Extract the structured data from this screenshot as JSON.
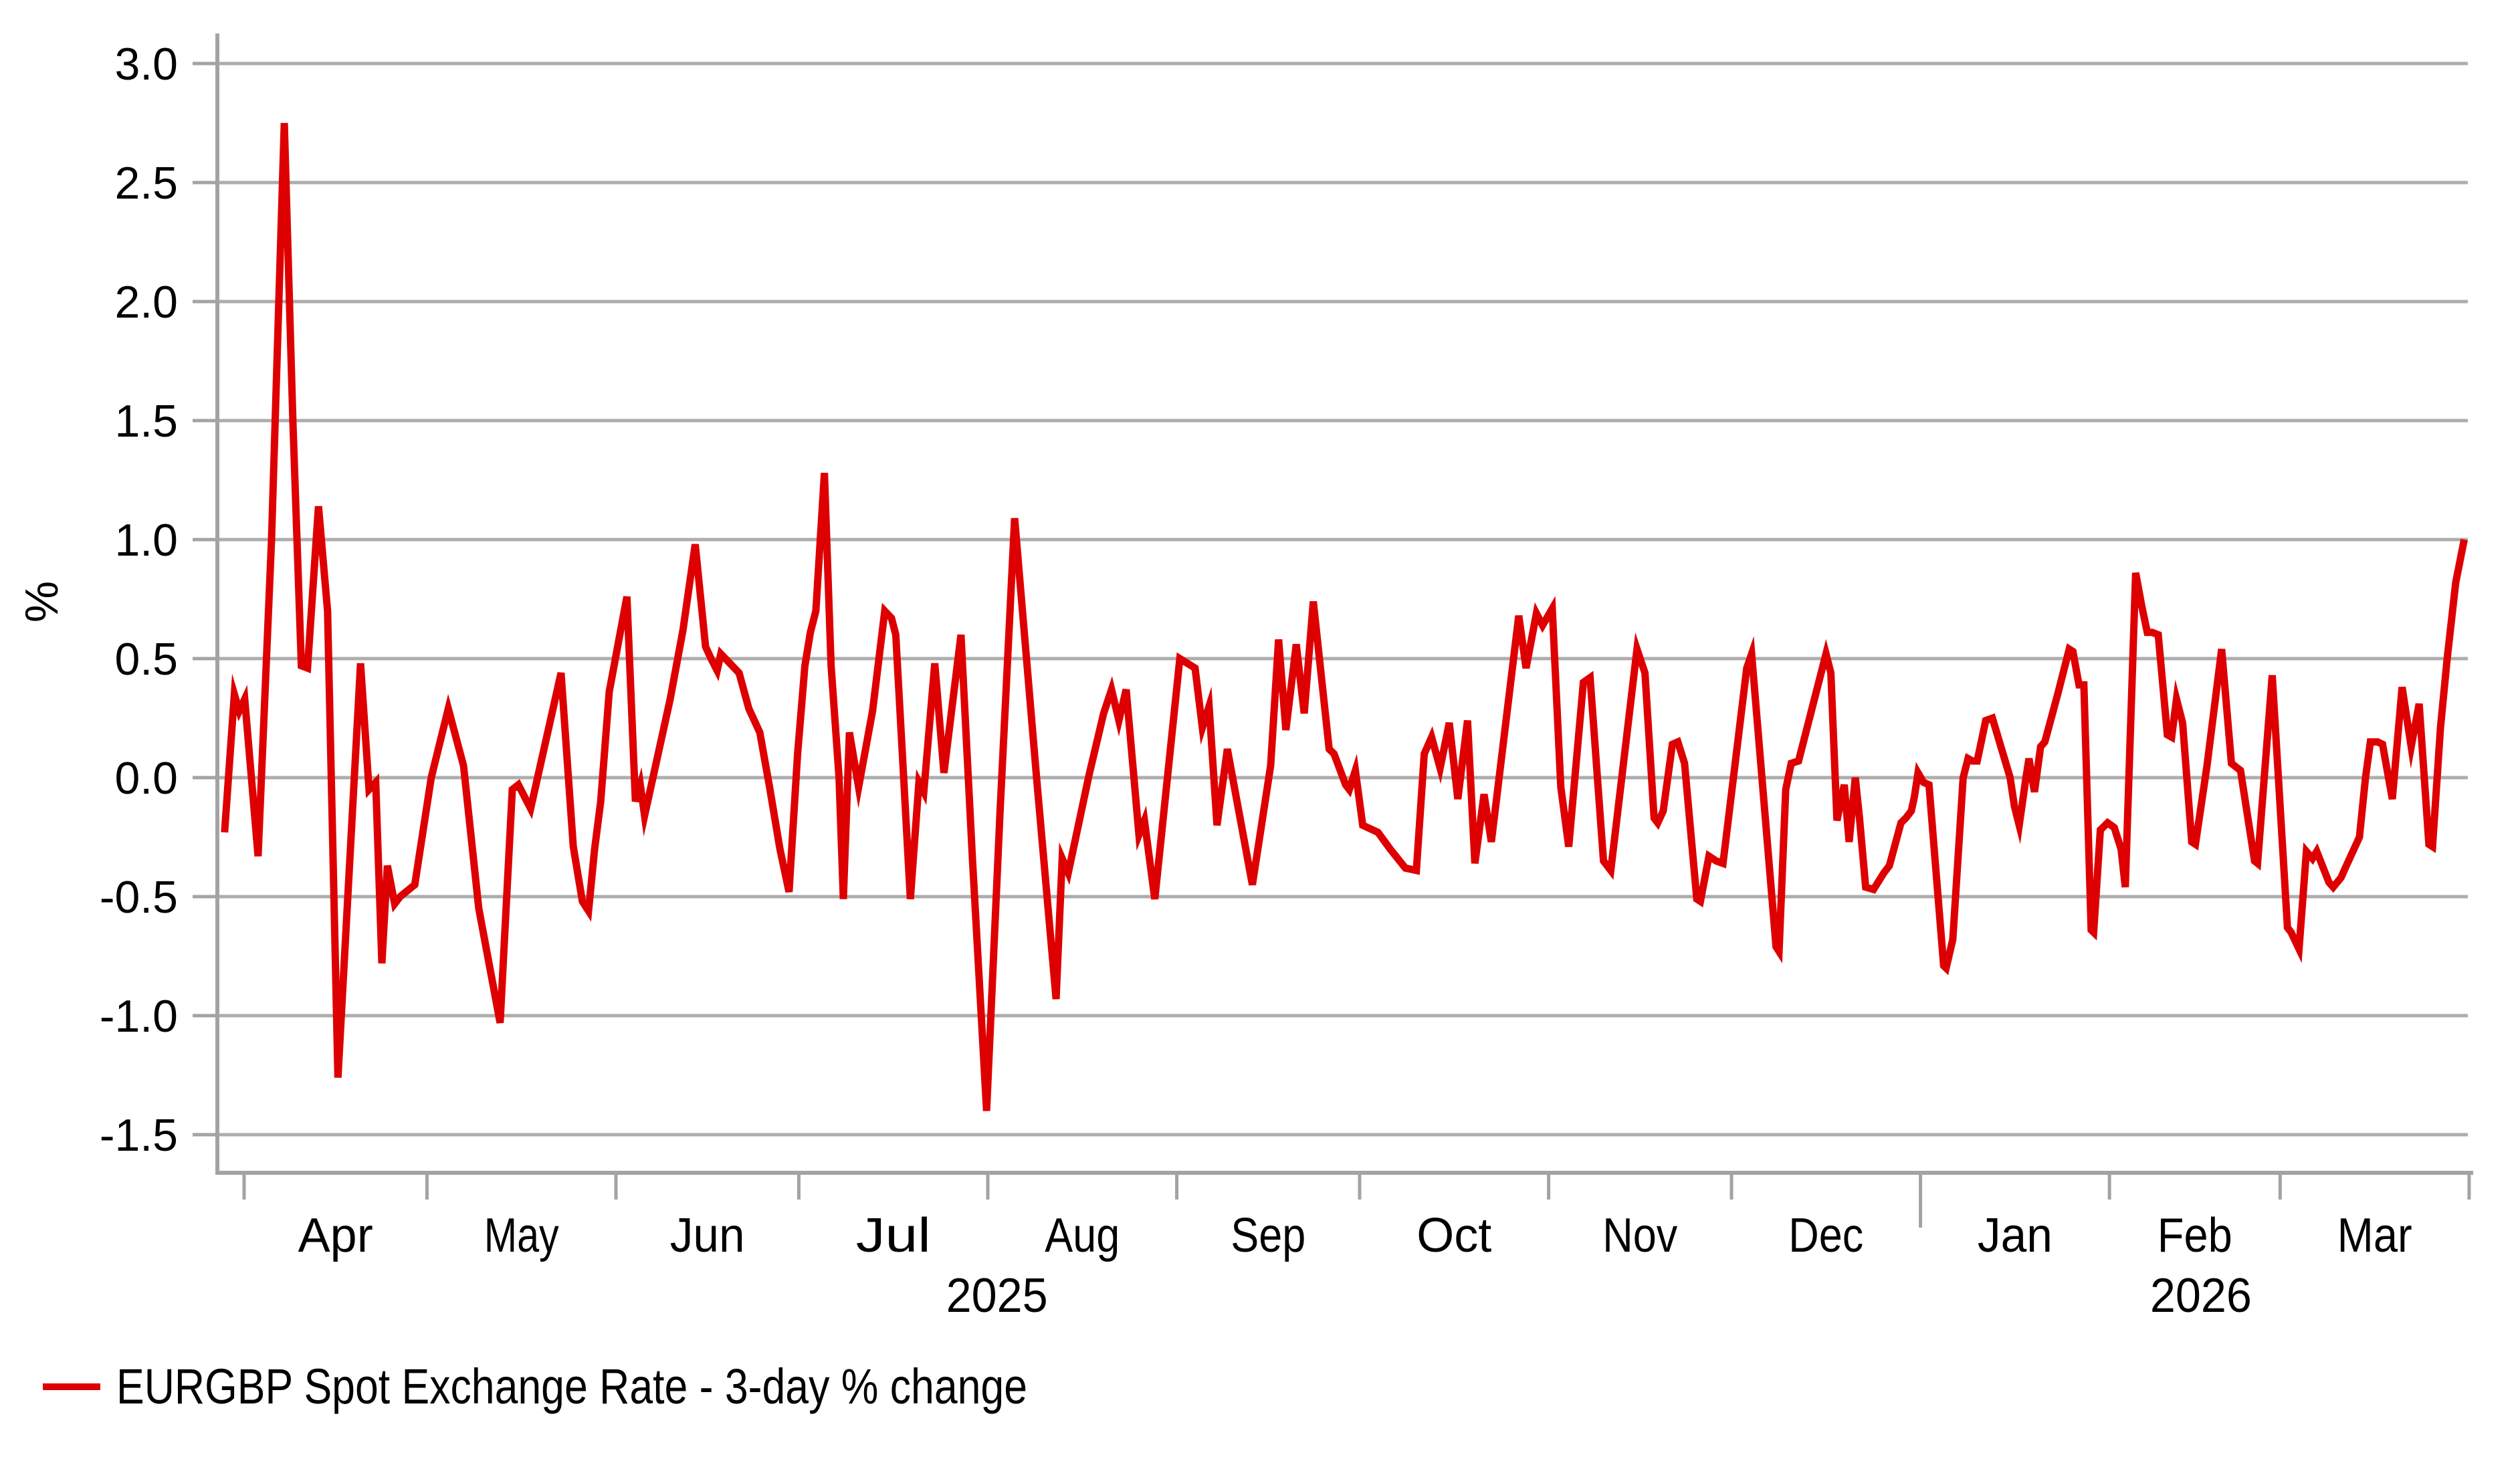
{
  "chart_data": {
    "type": "line",
    "title": "",
    "ylabel": "%",
    "grid": "horizontal",
    "legend_position": "bottom-left",
    "legend": {
      "entries": [
        {
          "label": "EURGBP Spot Exchange Rate - 3-day % change",
          "color": "#DE0000"
        }
      ]
    },
    "colors": {
      "series": "#DE0000",
      "gridline": "#ADADAD",
      "axis": "#A3A3A3",
      "text": "#000000",
      "background": "#FFFFFF"
    },
    "y_tick_labels": [
      "3.0",
      "2.5",
      "2.0",
      "1.5",
      "1.0",
      "0.5",
      "0.0",
      "-0.5",
      "-1.0",
      "-1.5"
    ],
    "y_tick_values": [
      3.0,
      2.5,
      2.0,
      1.5,
      1.0,
      0.5,
      0.0,
      -0.5,
      -1.0,
      -1.5
    ],
    "ylim": [
      -1.66,
      3.13
    ],
    "x_axis": {
      "month_ticks": [
        {
          "label": "Apr",
          "start_day": 4
        },
        {
          "label": "May",
          "start_day": 34
        },
        {
          "label": "Jun",
          "start_day": 65
        },
        {
          "label": "Jul",
          "start_day": 95
        },
        {
          "label": "Aug",
          "start_day": 126
        },
        {
          "label": "Sep",
          "start_day": 157
        },
        {
          "label": "Oct",
          "start_day": 187
        },
        {
          "label": "Nov",
          "start_day": 218
        },
        {
          "label": "Dec",
          "start_day": 248
        },
        {
          "label": "Jan",
          "start_day": 279,
          "year_start": true
        },
        {
          "label": "Feb",
          "start_day": 310
        },
        {
          "label": "Mar",
          "start_day": 338
        }
      ],
      "axis_end_day": 369,
      "year_labels": [
        {
          "label": "2025",
          "day": 127.5
        },
        {
          "label": "2026",
          "day": 325
        }
      ]
    },
    "series": [
      {
        "name": "EURGBP Spot Exchange Rate - 3-day % change",
        "color": "#DE0000",
        "points": [
          [
            0.8,
            -0.23
          ],
          [
            2.4,
            0.35
          ],
          [
            3.2,
            0.28
          ],
          [
            4.1,
            0.33
          ],
          [
            6.3,
            -0.33
          ],
          [
            8.5,
            1.0
          ],
          [
            10.6,
            2.75
          ],
          [
            12,
            1.5
          ],
          [
            13.4,
            0.47
          ],
          [
            14.4,
            0.46
          ],
          [
            16.2,
            1.14
          ],
          [
            17.7,
            0.7
          ],
          [
            19.4,
            -1.26
          ],
          [
            23.1,
            0.48
          ],
          [
            24.5,
            -0.05
          ],
          [
            25.6,
            -0.02
          ],
          [
            26.6,
            -0.78
          ],
          [
            27.5,
            -0.37
          ],
          [
            28.7,
            -0.53
          ],
          [
            29.6,
            -0.5
          ],
          [
            32,
            -0.45
          ],
          [
            34.7,
            0
          ],
          [
            37.5,
            0.29
          ],
          [
            40,
            0.05
          ],
          [
            42.5,
            -0.55
          ],
          [
            46,
            -1.03
          ],
          [
            48,
            -0.05
          ],
          [
            49,
            -0.03
          ],
          [
            51,
            -0.13
          ],
          [
            56,
            0.44
          ],
          [
            58,
            -0.29
          ],
          [
            59.5,
            -0.52
          ],
          [
            60.5,
            -0.56
          ],
          [
            61.5,
            -0.3
          ],
          [
            62.5,
            -0.1
          ],
          [
            63.9,
            0.36
          ],
          [
            66.8,
            0.76
          ],
          [
            68.2,
            -0.1
          ],
          [
            69,
            -0.03
          ],
          [
            69.7,
            -0.16
          ],
          [
            71.5,
            0.05
          ],
          [
            73.9,
            0.33
          ],
          [
            76,
            0.62
          ],
          [
            78,
            0.98
          ],
          [
            79.7,
            0.55
          ],
          [
            80.6,
            0.5
          ],
          [
            81.6,
            0.45
          ],
          [
            82.2,
            0.52
          ],
          [
            85.2,
            0.44
          ],
          [
            86.8,
            0.29
          ],
          [
            88.6,
            0.19
          ],
          [
            90.2,
            -0.04
          ],
          [
            91.9,
            -0.3
          ],
          [
            93.4,
            -0.48
          ],
          [
            94.8,
            0.1
          ],
          [
            96,
            0.47
          ],
          [
            96.9,
            0.61
          ],
          [
            97.8,
            0.7
          ],
          [
            99.2,
            1.28
          ],
          [
            100.3,
            0.47
          ],
          [
            101.6,
            0
          ],
          [
            102.3,
            -0.51
          ],
          [
            103.3,
            0.19
          ],
          [
            104.8,
            -0.04
          ],
          [
            107.1,
            0.28
          ],
          [
            109.1,
            0.7
          ],
          [
            110.2,
            0.67
          ],
          [
            110.9,
            0.6
          ],
          [
            113.3,
            -0.51
          ],
          [
            114.7,
            -0.02
          ],
          [
            115.5,
            -0.06
          ],
          [
            117.3,
            0.48
          ],
          [
            118.8,
            0.02
          ],
          [
            121.6,
            0.6
          ],
          [
            123.5,
            -0.35
          ],
          [
            125.8,
            -1.4
          ],
          [
            128,
            -0.15
          ],
          [
            130.4,
            1.09
          ],
          [
            134,
            0
          ],
          [
            137.2,
            -0.93
          ],
          [
            138.2,
            -0.34
          ],
          [
            139.2,
            -0.4
          ],
          [
            142.6,
            0.01
          ],
          [
            145,
            0.27
          ],
          [
            146.3,
            0.37
          ],
          [
            147.5,
            0.24
          ],
          [
            148.7,
            0.37
          ],
          [
            150.8,
            -0.24
          ],
          [
            151.7,
            -0.18
          ],
          [
            153.4,
            -0.51
          ],
          [
            157.5,
            0.5
          ],
          [
            160,
            0.46
          ],
          [
            161.2,
            0.21
          ],
          [
            162.3,
            0.3
          ],
          [
            163.6,
            -0.2
          ],
          [
            165.3,
            0.12
          ],
          [
            169.4,
            -0.45
          ],
          [
            172.4,
            0.05
          ],
          [
            173.7,
            0.58
          ],
          [
            174.9,
            0.2
          ],
          [
            176.6,
            0.56
          ],
          [
            177.9,
            0.27
          ],
          [
            179.4,
            0.74
          ],
          [
            182,
            0.12
          ],
          [
            182.8,
            0.1
          ],
          [
            184.7,
            -0.03
          ],
          [
            185.3,
            -0.05
          ],
          [
            186.3,
            0.03
          ],
          [
            187.5,
            -0.2
          ],
          [
            190,
            -0.23
          ],
          [
            192,
            -0.3
          ],
          [
            194.5,
            -0.38
          ],
          [
            196.3,
            -0.39
          ],
          [
            197.6,
            0.1
          ],
          [
            198.8,
            0.17
          ],
          [
            200.2,
            0.04
          ],
          [
            201.7,
            0.23
          ],
          [
            203.1,
            -0.09
          ],
          [
            204.7,
            0.24
          ],
          [
            205.9,
            -0.36
          ],
          [
            207.4,
            -0.07
          ],
          [
            208.6,
            -0.27
          ],
          [
            213.1,
            0.68
          ],
          [
            214.3,
            0.46
          ],
          [
            216,
            0.69
          ],
          [
            217,
            0.64
          ],
          [
            218.6,
            0.71
          ],
          [
            220,
            -0.04
          ],
          [
            221.3,
            -0.29
          ],
          [
            223.7,
            0.4
          ],
          [
            224.8,
            0.42
          ],
          [
            227,
            -0.35
          ],
          [
            228.2,
            -0.39
          ],
          [
            232.5,
            0.54
          ],
          [
            233.8,
            0.44
          ],
          [
            235.3,
            -0.17
          ],
          [
            235.9,
            -0.19
          ],
          [
            236.8,
            -0.14
          ],
          [
            238.3,
            0.14
          ],
          [
            239.2,
            0.15
          ],
          [
            240.3,
            0.06
          ],
          [
            242.3,
            -0.51
          ],
          [
            242.9,
            -0.52
          ],
          [
            244.3,
            -0.33
          ],
          [
            245.5,
            -0.35
          ],
          [
            246.6,
            -0.36
          ],
          [
            250.5,
            0.46
          ],
          [
            251.3,
            0.52
          ],
          [
            255.3,
            -0.71
          ],
          [
            255.8,
            -0.73
          ],
          [
            256.9,
            -0.05
          ],
          [
            257.8,
            0.06
          ],
          [
            259,
            0.07
          ],
          [
            263.5,
            0.52
          ],
          [
            264.3,
            0.44
          ],
          [
            265.3,
            -0.18
          ],
          [
            266.5,
            -0.03
          ],
          [
            267.3,
            -0.27
          ],
          [
            268.3,
            0
          ],
          [
            269,
            -0.17
          ],
          [
            270,
            -0.46
          ],
          [
            271.3,
            -0.47
          ],
          [
            273,
            -0.4
          ],
          [
            273.9,
            -0.37
          ],
          [
            275.8,
            -0.19
          ],
          [
            276.6,
            -0.17
          ],
          [
            277.5,
            -0.14
          ],
          [
            278,
            -0.08
          ],
          [
            278.6,
            0.02
          ],
          [
            279.5,
            -0.02
          ],
          [
            280.4,
            -0.03
          ],
          [
            282.8,
            -0.79
          ],
          [
            283.2,
            -0.8
          ],
          [
            284.3,
            -0.68
          ],
          [
            286,
            0
          ],
          [
            286.8,
            0.08
          ],
          [
            287.5,
            0.07
          ],
          [
            288.3,
            0.07
          ],
          [
            289.7,
            0.24
          ],
          [
            290.8,
            0.25
          ],
          [
            293.7,
            0
          ],
          [
            294.4,
            -0.12
          ],
          [
            295.2,
            -0.2
          ],
          [
            296.3,
            0
          ],
          [
            296.8,
            0.08
          ],
          [
            297.7,
            -0.06
          ],
          [
            298.7,
            0.13
          ],
          [
            299.4,
            0.15
          ],
          [
            301.5,
            0.35
          ],
          [
            303.4,
            0.54
          ],
          [
            304,
            0.53
          ],
          [
            305,
            0.39
          ],
          [
            305.8,
            0.39
          ],
          [
            307,
            -0.64
          ],
          [
            307.4,
            -0.65
          ],
          [
            308.5,
            -0.22
          ],
          [
            309.7,
            -0.19
          ],
          [
            310.8,
            -0.21
          ],
          [
            311.9,
            -0.3
          ],
          [
            312.6,
            -0.46
          ],
          [
            314.3,
            0.86
          ],
          [
            315.3,
            0.72
          ],
          [
            316.2,
            0.61
          ],
          [
            317,
            0.61
          ],
          [
            318,
            0.6
          ],
          [
            319.5,
            0.18
          ],
          [
            320.2,
            0.17
          ],
          [
            321,
            0.33
          ],
          [
            322,
            0.23
          ],
          [
            323.5,
            -0.27
          ],
          [
            324.1,
            -0.28
          ],
          [
            326,
            0.05
          ],
          [
            328.4,
            0.54
          ],
          [
            330,
            0.06
          ],
          [
            331,
            0.04
          ],
          [
            331.5,
            0.03
          ],
          [
            333.8,
            -0.35
          ],
          [
            334.3,
            -0.36
          ],
          [
            336.7,
            0.43
          ],
          [
            339.2,
            -0.63
          ],
          [
            339.8,
            -0.65
          ],
          [
            341.1,
            -0.72
          ],
          [
            342.3,
            -0.31
          ],
          [
            343.3,
            -0.34
          ],
          [
            344,
            -0.31
          ],
          [
            346,
            -0.44
          ],
          [
            346.7,
            -0.46
          ],
          [
            348,
            -0.42
          ],
          [
            348.5,
            -0.39
          ],
          [
            351,
            -0.25
          ],
          [
            352,
            0
          ],
          [
            352.8,
            0.15
          ],
          [
            354,
            0.15
          ],
          [
            354.8,
            0.14
          ],
          [
            356.4,
            -0.09
          ],
          [
            358,
            0.38
          ],
          [
            359.5,
            0.13
          ],
          [
            360.8,
            0.31
          ],
          [
            362.4,
            -0.28
          ],
          [
            363,
            -0.29
          ],
          [
            364.3,
            0.21
          ],
          [
            365.4,
            0.5
          ],
          [
            366.8,
            0.82
          ],
          [
            368.2,
            1.0
          ]
        ]
      }
    ]
  }
}
